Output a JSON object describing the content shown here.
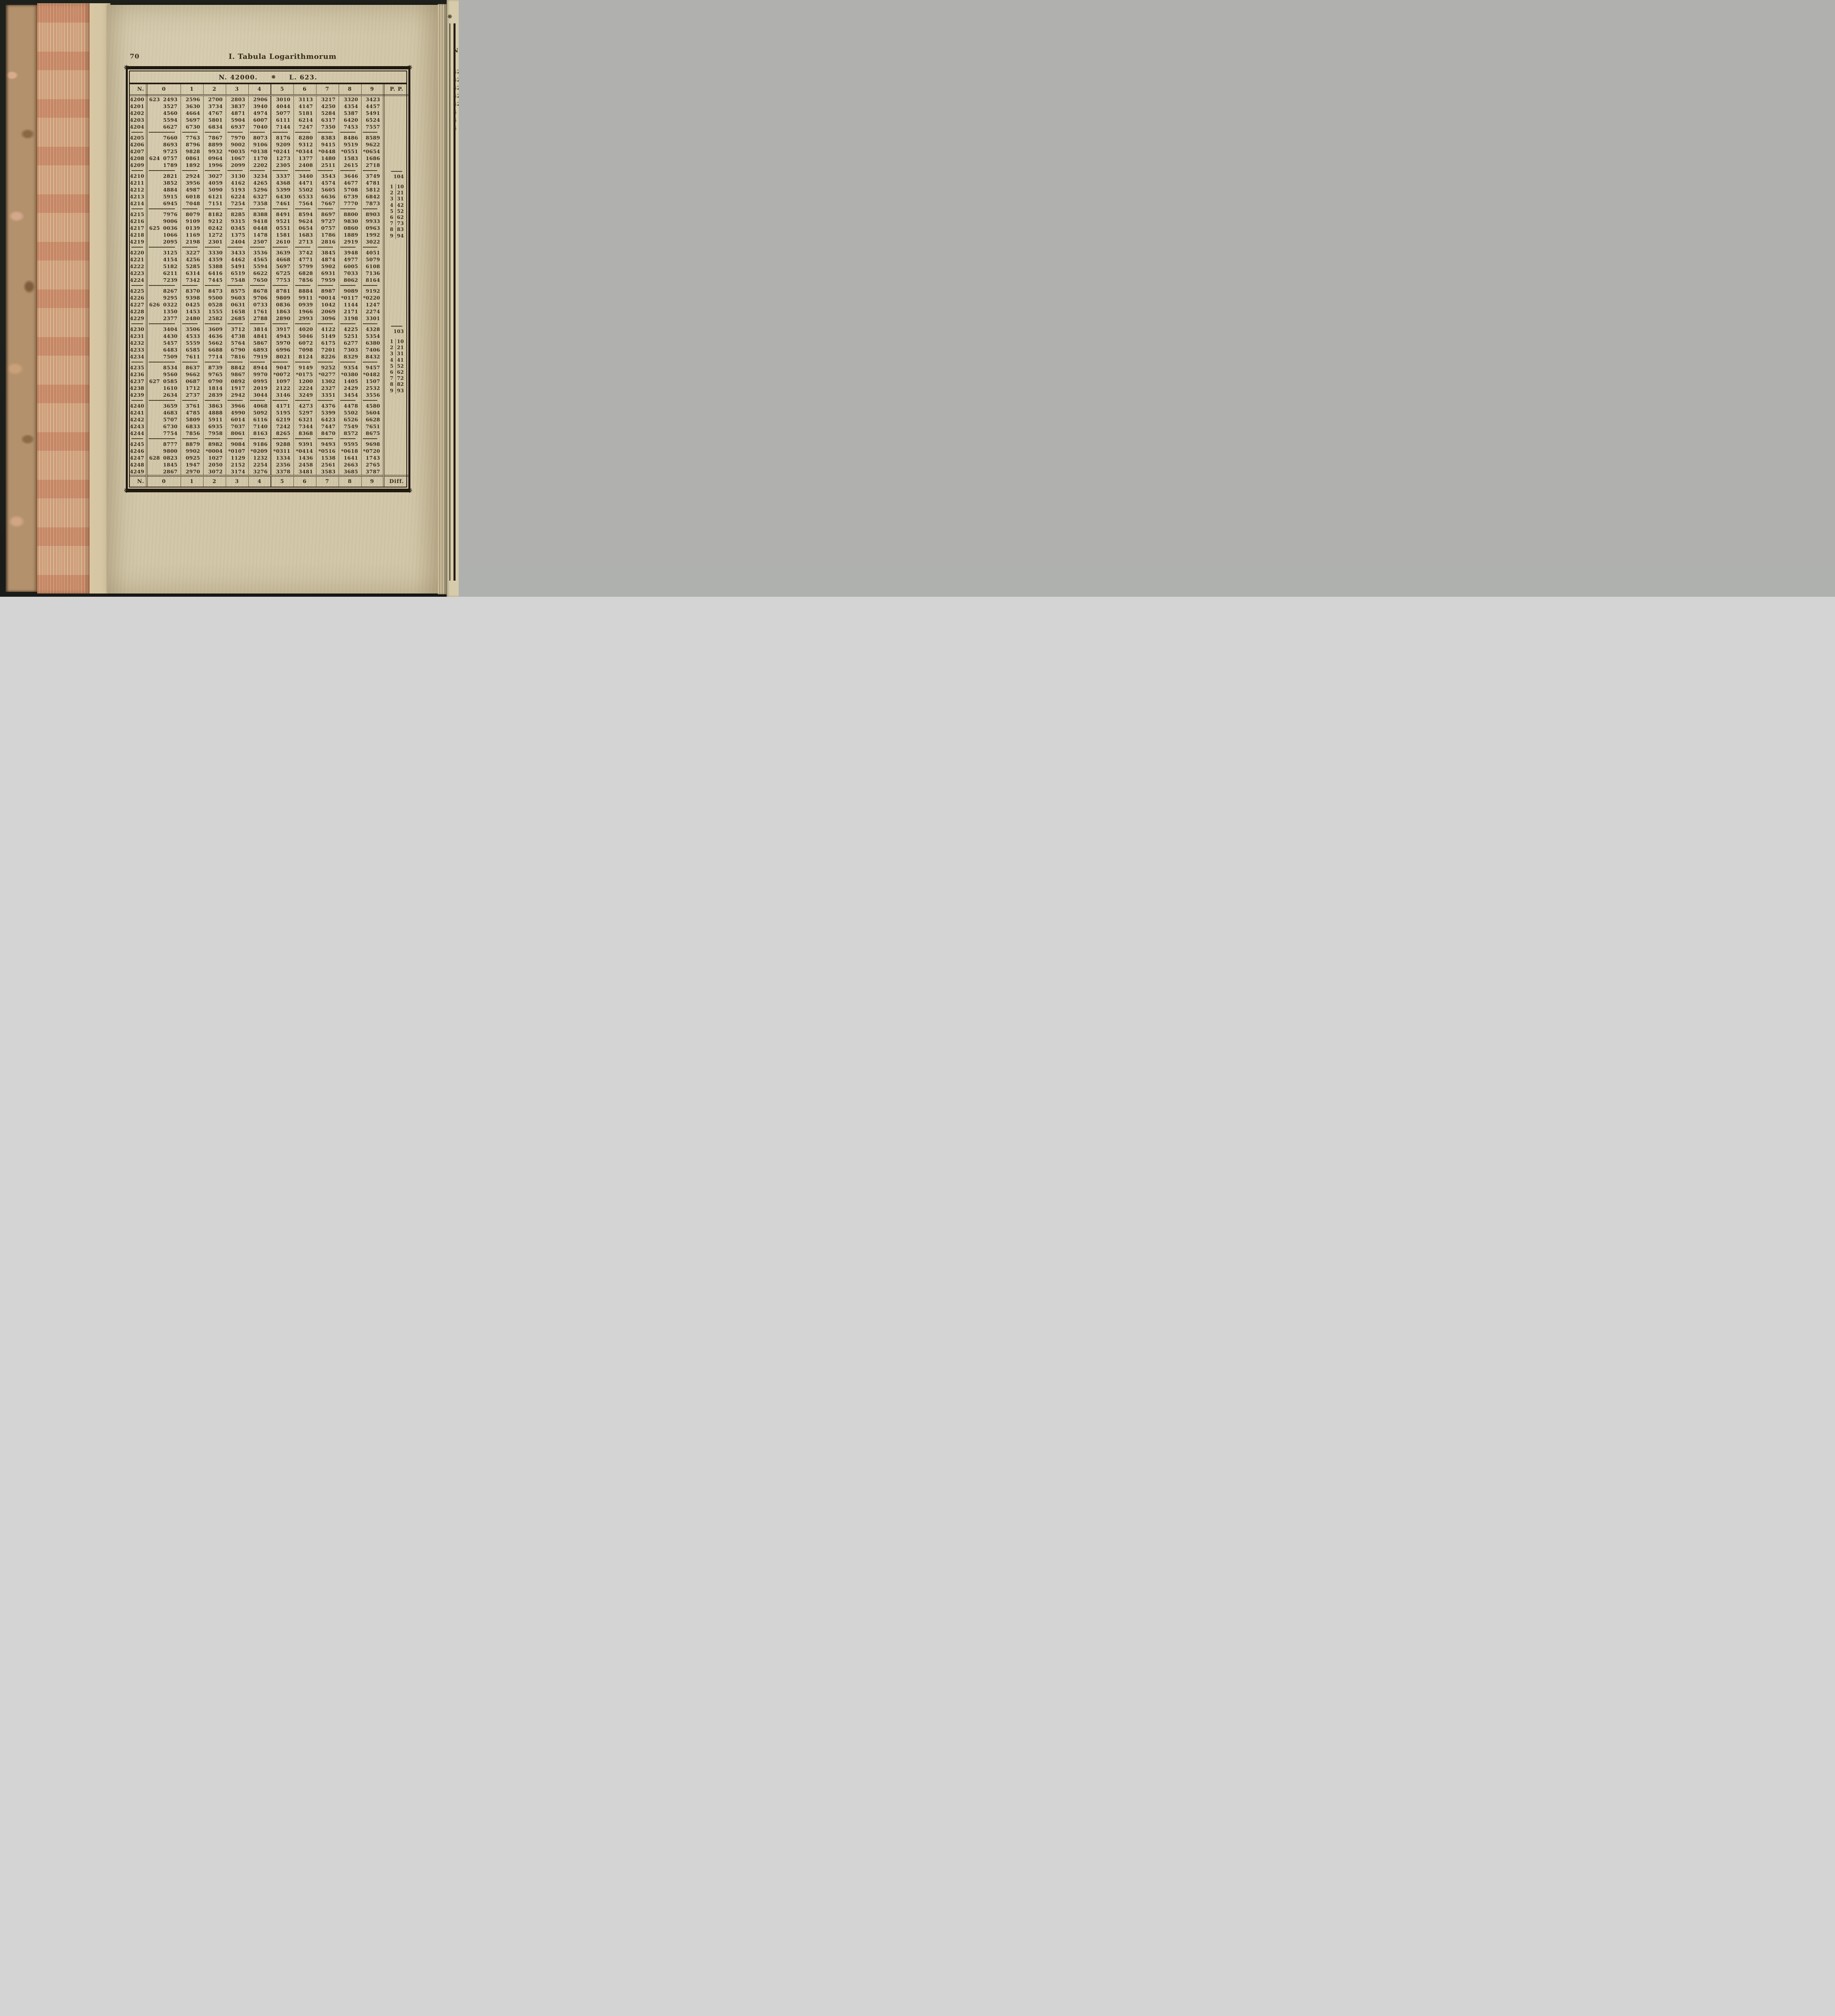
{
  "page": {
    "number": "70",
    "running_title": "I.  Tabula Logarithmorum"
  },
  "table": {
    "title": {
      "n_label": "N. 42000.",
      "ornament": "❊",
      "l_label": "L. 623."
    },
    "corner_ornament": "❋",
    "col_headers": [
      "N.",
      "0",
      "1",
      "2",
      "3",
      "4",
      "5",
      "6",
      "7",
      "8",
      "9",
      "P. P."
    ],
    "footer_headers": [
      "N.",
      "0",
      "1",
      "2",
      "3",
      "4",
      "5",
      "6",
      "7",
      "8",
      "9",
      "Diff."
    ],
    "rows": [
      {
        "n": "4200",
        "p": "623",
        "v": [
          "2493",
          "2596",
          "2700",
          "2803",
          "2906",
          "3010",
          "3113",
          "3217",
          "3320",
          "3423"
        ]
      },
      {
        "n": "4201",
        "p": "",
        "v": [
          "3527",
          "3630",
          "3734",
          "3837",
          "3940",
          "4044",
          "4147",
          "4250",
          "4354",
          "4457"
        ]
      },
      {
        "n": "4202",
        "p": "",
        "v": [
          "4560",
          "4664",
          "4767",
          "4871",
          "4974",
          "5077",
          "5181",
          "5284",
          "5387",
          "5491"
        ]
      },
      {
        "n": "4203",
        "p": "",
        "v": [
          "5594",
          "5697",
          "5801",
          "5904",
          "6007",
          "6111",
          "6214",
          "6317",
          "6420",
          "6524"
        ]
      },
      {
        "n": "4204",
        "p": "",
        "v": [
          "6627",
          "6730",
          "6834",
          "6937",
          "7040",
          "7144",
          "7247",
          "7350",
          "7453",
          "7557"
        ]
      },
      {
        "n": "4205",
        "p": "",
        "v": [
          "7660",
          "7763",
          "7867",
          "7970",
          "8073",
          "8176",
          "8280",
          "8383",
          "8486",
          "8589"
        ]
      },
      {
        "n": "4206",
        "p": "",
        "v": [
          "8693",
          "8796",
          "8899",
          "9002",
          "9106",
          "9209",
          "9312",
          "9415",
          "9519",
          "9622"
        ]
      },
      {
        "n": "4207",
        "p": "",
        "v": [
          "9725",
          "9828",
          "9932",
          "*0035",
          "*0138",
          "*0241",
          "*0344",
          "*0448",
          "*0551",
          "*0654"
        ]
      },
      {
        "n": "4208",
        "p": "624",
        "v": [
          "0757",
          "0861",
          "0964",
          "1067",
          "1170",
          "1273",
          "1377",
          "1480",
          "1583",
          "1686"
        ]
      },
      {
        "n": "4209",
        "p": "",
        "v": [
          "1789",
          "1892",
          "1996",
          "2099",
          "2202",
          "2305",
          "2408",
          "2511",
          "2615",
          "2718"
        ]
      },
      {
        "n": "4210",
        "p": "",
        "v": [
          "2821",
          "2924",
          "3027",
          "3130",
          "3234",
          "3337",
          "3440",
          "3543",
          "3646",
          "3749"
        ]
      },
      {
        "n": "4211",
        "p": "",
        "v": [
          "3852",
          "3956",
          "4059",
          "4162",
          "4265",
          "4368",
          "4471",
          "4574",
          "4677",
          "4781"
        ]
      },
      {
        "n": "4212",
        "p": "",
        "v": [
          "4884",
          "4987",
          "5090",
          "5193",
          "5296",
          "5399",
          "5502",
          "5605",
          "5708",
          "5812"
        ]
      },
      {
        "n": "4213",
        "p": "",
        "v": [
          "5915",
          "6018",
          "6121",
          "6224",
          "6327",
          "6430",
          "6533",
          "6636",
          "6739",
          "6842"
        ]
      },
      {
        "n": "4214",
        "p": "",
        "v": [
          "6945",
          "7048",
          "7151",
          "7254",
          "7358",
          "7461",
          "7564",
          "7667",
          "7770",
          "7873"
        ]
      },
      {
        "n": "4215",
        "p": "",
        "v": [
          "7976",
          "8079",
          "8182",
          "8285",
          "8388",
          "8491",
          "8594",
          "8697",
          "8800",
          "8903"
        ]
      },
      {
        "n": "4216",
        "p": "",
        "v": [
          "9006",
          "9109",
          "9212",
          "9315",
          "9418",
          "9521",
          "9624",
          "9727",
          "9830",
          "9933"
        ]
      },
      {
        "n": "4217",
        "p": "625",
        "v": [
          "0036",
          "0139",
          "0242",
          "0345",
          "0448",
          "0551",
          "0654",
          "0757",
          "0860",
          "0963"
        ]
      },
      {
        "n": "4218",
        "p": "",
        "v": [
          "1066",
          "1169",
          "1272",
          "1375",
          "1478",
          "1581",
          "1683",
          "1786",
          "1889",
          "1992"
        ]
      },
      {
        "n": "4219",
        "p": "",
        "v": [
          "2095",
          "2198",
          "2301",
          "2404",
          "2507",
          "2610",
          "2713",
          "2816",
          "2919",
          "3022"
        ]
      },
      {
        "n": "4220",
        "p": "",
        "v": [
          "3125",
          "3227",
          "3330",
          "3433",
          "3536",
          "3639",
          "3742",
          "3845",
          "3948",
          "4051"
        ]
      },
      {
        "n": "4221",
        "p": "",
        "v": [
          "4154",
          "4256",
          "4359",
          "4462",
          "4565",
          "4668",
          "4771",
          "4874",
          "4977",
          "5079"
        ]
      },
      {
        "n": "4222",
        "p": "",
        "v": [
          "5182",
          "5285",
          "5388",
          "5491",
          "5594",
          "5697",
          "5799",
          "5902",
          "6005",
          "6108"
        ]
      },
      {
        "n": "4223",
        "p": "",
        "v": [
          "6211",
          "6314",
          "6416",
          "6519",
          "6622",
          "6725",
          "6828",
          "6931",
          "7033",
          "7136"
        ]
      },
      {
        "n": "4224",
        "p": "",
        "v": [
          "7239",
          "7342",
          "7445",
          "7548",
          "7650",
          "7753",
          "7856",
          "7959",
          "8062",
          "8164"
        ]
      },
      {
        "n": "4225",
        "p": "",
        "v": [
          "8267",
          "8370",
          "8473",
          "8575",
          "8678",
          "8781",
          "8884",
          "8987",
          "9089",
          "9192"
        ]
      },
      {
        "n": "4226",
        "p": "",
        "v": [
          "9295",
          "9398",
          "9500",
          "9603",
          "9706",
          "9809",
          "9911",
          "*0014",
          "*0117",
          "*0220"
        ]
      },
      {
        "n": "4227",
        "p": "626",
        "v": [
          "0322",
          "0425",
          "0528",
          "0631",
          "0733",
          "0836",
          "0939",
          "1042",
          "1144",
          "1247"
        ]
      },
      {
        "n": "4228",
        "p": "",
        "v": [
          "1350",
          "1453",
          "1555",
          "1658",
          "1761",
          "1863",
          "1966",
          "2069",
          "2171",
          "2274"
        ]
      },
      {
        "n": "4229",
        "p": "",
        "v": [
          "2377",
          "2480",
          "2582",
          "2685",
          "2788",
          "2890",
          "2993",
          "3096",
          "3198",
          "3301"
        ]
      },
      {
        "n": "4230",
        "p": "",
        "v": [
          "3404",
          "3506",
          "3609",
          "3712",
          "3814",
          "3917",
          "4020",
          "4122",
          "4225",
          "4328"
        ]
      },
      {
        "n": "4231",
        "p": "",
        "v": [
          "4430",
          "4533",
          "4636",
          "4738",
          "4841",
          "4943",
          "5046",
          "5149",
          "5251",
          "5354"
        ]
      },
      {
        "n": "4232",
        "p": "",
        "v": [
          "5457",
          "5559",
          "5662",
          "5764",
          "5867",
          "5970",
          "6072",
          "6175",
          "6277",
          "6380"
        ]
      },
      {
        "n": "4233",
        "p": "",
        "v": [
          "6483",
          "6585",
          "6688",
          "6790",
          "6893",
          "6996",
          "7098",
          "7201",
          "7303",
          "7406"
        ]
      },
      {
        "n": "4234",
        "p": "",
        "v": [
          "7509",
          "7611",
          "7714",
          "7816",
          "7919",
          "8021",
          "8124",
          "8226",
          "8329",
          "8432"
        ]
      },
      {
        "n": "4235",
        "p": "",
        "v": [
          "8534",
          "8637",
          "8739",
          "8842",
          "8944",
          "9047",
          "9149",
          "9252",
          "9354",
          "9457"
        ]
      },
      {
        "n": "4236",
        "p": "",
        "v": [
          "9560",
          "9662",
          "9765",
          "9867",
          "9970",
          "*0072",
          "*0175",
          "*0277",
          "*0380",
          "*0482"
        ]
      },
      {
        "n": "4237",
        "p": "627",
        "v": [
          "0585",
          "0687",
          "0790",
          "0892",
          "0995",
          "1097",
          "1200",
          "1302",
          "1405",
          "1507"
        ]
      },
      {
        "n": "4238",
        "p": "",
        "v": [
          "1610",
          "1712",
          "1814",
          "1917",
          "2019",
          "2122",
          "2224",
          "2327",
          "2429",
          "2532"
        ]
      },
      {
        "n": "4239",
        "p": "",
        "v": [
          "2634",
          "2737",
          "2839",
          "2942",
          "3044",
          "3146",
          "3249",
          "3351",
          "3454",
          "3556"
        ]
      },
      {
        "n": "4240",
        "p": "",
        "v": [
          "3659",
          "3761",
          "3863",
          "3966",
          "4068",
          "4171",
          "4273",
          "4376",
          "4478",
          "4580"
        ]
      },
      {
        "n": "4241",
        "p": "",
        "v": [
          "4683",
          "4785",
          "4888",
          "4990",
          "5092",
          "5195",
          "5297",
          "5399",
          "5502",
          "5604"
        ]
      },
      {
        "n": "4242",
        "p": "",
        "v": [
          "5707",
          "5809",
          "5911",
          "6014",
          "6116",
          "6219",
          "6321",
          "6423",
          "6526",
          "6628"
        ]
      },
      {
        "n": "4243",
        "p": "",
        "v": [
          "6730",
          "6833",
          "6935",
          "7037",
          "7140",
          "7242",
          "7344",
          "7447",
          "7549",
          "7651"
        ]
      },
      {
        "n": "4244",
        "p": "",
        "v": [
          "7754",
          "7856",
          "7958",
          "8061",
          "8163",
          "8265",
          "8368",
          "8470",
          "8572",
          "8675"
        ]
      },
      {
        "n": "4245",
        "p": "",
        "v": [
          "8777",
          "8879",
          "8982",
          "9084",
          "9186",
          "9288",
          "9391",
          "9493",
          "9595",
          "9698"
        ]
      },
      {
        "n": "4246",
        "p": "",
        "v": [
          "9800",
          "9902",
          "*0004",
          "*0107",
          "*0209",
          "*0311",
          "*0414",
          "*0516",
          "*0618",
          "*0720"
        ]
      },
      {
        "n": "4247",
        "p": "628",
        "v": [
          "0823",
          "0925",
          "1027",
          "1129",
          "1232",
          "1334",
          "1436",
          "1538",
          "1641",
          "1743"
        ]
      },
      {
        "n": "4248",
        "p": "",
        "v": [
          "1845",
          "1947",
          "2050",
          "2152",
          "2254",
          "2356",
          "2458",
          "2561",
          "2663",
          "2765"
        ]
      },
      {
        "n": "4249",
        "p": "",
        "v": [
          "2867",
          "2970",
          "3072",
          "3174",
          "3276",
          "3378",
          "3481",
          "3583",
          "3685",
          "3787"
        ]
      }
    ],
    "pp_tables": [
      {
        "header": "104",
        "pairs": [
          [
            "1",
            "10"
          ],
          [
            "2",
            "21"
          ],
          [
            "3",
            "31"
          ],
          [
            "4",
            "42"
          ],
          [
            "5",
            "52"
          ],
          [
            "6",
            "62"
          ],
          [
            "7",
            "73"
          ],
          [
            "8",
            "83"
          ],
          [
            "9",
            "94"
          ]
        ]
      },
      {
        "header": "103",
        "pairs": [
          [
            "1",
            "10"
          ],
          [
            "2",
            "21"
          ],
          [
            "3",
            "31"
          ],
          [
            "4",
            "41"
          ],
          [
            "5",
            "52"
          ],
          [
            "6",
            "62"
          ],
          [
            "7",
            "72"
          ],
          [
            "8",
            "82"
          ],
          [
            "9",
            "93"
          ]
        ]
      }
    ]
  },
  "next_page": {
    "ornament": "❋",
    "header": "N",
    "partials": [
      "42",
      "42",
      "42",
      "42",
      "42",
      "4",
      "4",
      "4"
    ]
  }
}
